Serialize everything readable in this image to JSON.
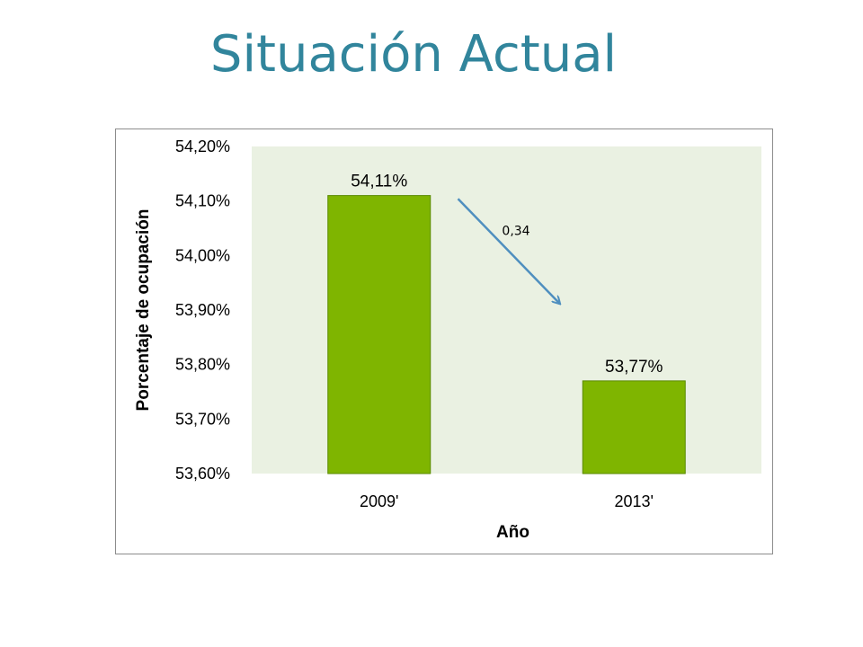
{
  "slide": {
    "title": "Situación Actual"
  },
  "colors": {
    "title": "#31859c",
    "bar": "#7fb500",
    "bar_edge": "#5a8a00",
    "plot_bg": "#eaf1e2",
    "arrow": "#4f8fbf"
  },
  "chart_data": {
    "type": "bar",
    "categories": [
      "2009'",
      "2013'"
    ],
    "values": [
      54.11,
      53.77
    ],
    "value_labels": [
      "54,11%",
      "53,77%"
    ],
    "title": "",
    "xlabel": "Año",
    "ylabel": "Porcentaje de ocupación",
    "ylim": [
      53.6,
      54.2
    ],
    "yticks": [
      54.2,
      54.1,
      54.0,
      53.9,
      53.8,
      53.7,
      53.6
    ],
    "ytick_labels": [
      "54,20%",
      "54,10%",
      "54,00%",
      "53,90%",
      "53,80%",
      "53,70%",
      "53,60%"
    ],
    "grid": false,
    "legend": "none",
    "annotation": {
      "text": "0,34",
      "shape": "arrow",
      "from_category": "2009'",
      "to_category": "2013'"
    }
  }
}
